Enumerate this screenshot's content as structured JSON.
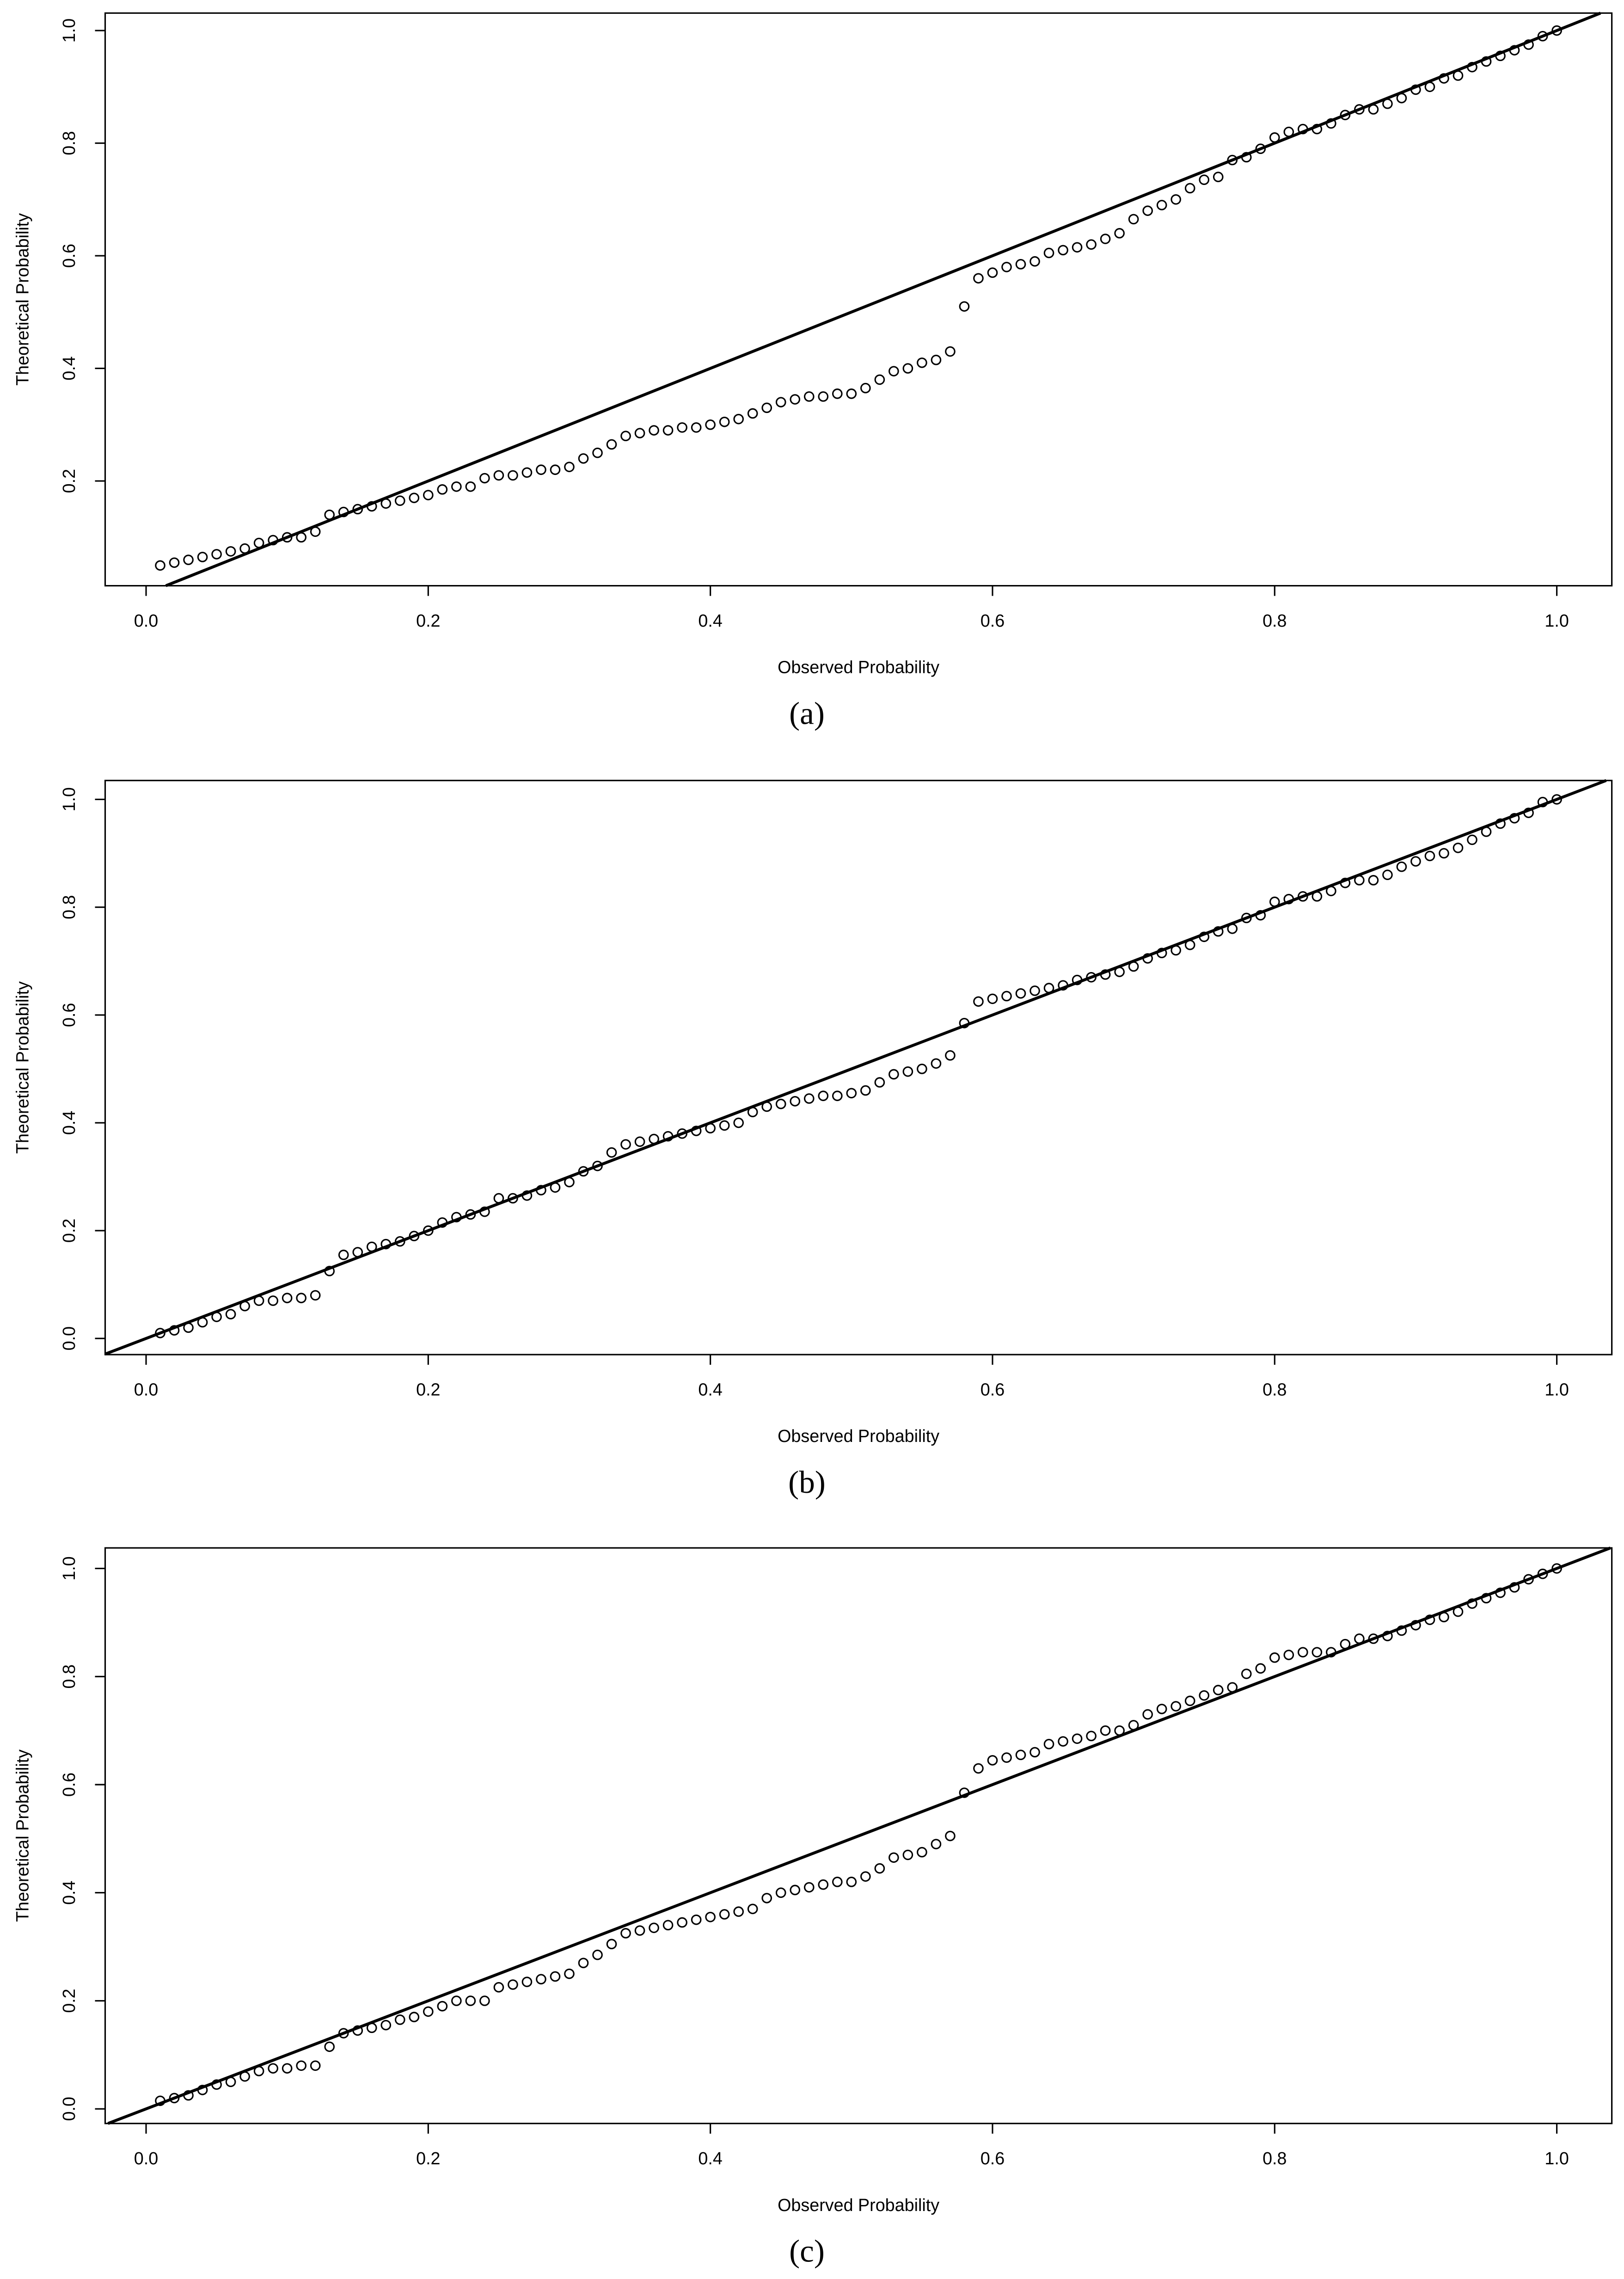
{
  "chart_data": [
    {
      "type": "scatter",
      "caption": "(a)",
      "x_label": "Observed Probability",
      "y_label": "Theoretical Probability",
      "marker": "open-circle",
      "color": "#000000",
      "diagonal_line": true,
      "xlim": [
        -0.029,
        1.039
      ],
      "ylim": [
        0.014,
        1.031
      ],
      "xticks": [
        {
          "value": 0,
          "label": "0.0"
        },
        0.2,
        0.4,
        0.6,
        0.8,
        {
          "value": 1,
          "label": "1.0"
        }
      ],
      "yticks": [
        0.2,
        0.4,
        0.6,
        0.8,
        {
          "value": 1,
          "label": "1.0"
        }
      ],
      "x": [
        0.01,
        0.02,
        0.03,
        0.04,
        0.05,
        0.06,
        0.07,
        0.08,
        0.09,
        0.1,
        0.11,
        0.12,
        0.13,
        0.14,
        0.15,
        0.16,
        0.17,
        0.18,
        0.19,
        0.2,
        0.21,
        0.22,
        0.23,
        0.24,
        0.25,
        0.26,
        0.27,
        0.28,
        0.29,
        0.3,
        0.31,
        0.32,
        0.33,
        0.34,
        0.35,
        0.36,
        0.37,
        0.38,
        0.39,
        0.4,
        0.41,
        0.42,
        0.43,
        0.44,
        0.45,
        0.46,
        0.47,
        0.48,
        0.49,
        0.5,
        0.51,
        0.52,
        0.53,
        0.54,
        0.55,
        0.56,
        0.57,
        0.58,
        0.59,
        0.6,
        0.61,
        0.62,
        0.63,
        0.64,
        0.65,
        0.66,
        0.67,
        0.68,
        0.69,
        0.7,
        0.71,
        0.72,
        0.73,
        0.74,
        0.75,
        0.76,
        0.77,
        0.78,
        0.79,
        0.8,
        0.81,
        0.82,
        0.83,
        0.84,
        0.85,
        0.86,
        0.87,
        0.88,
        0.89,
        0.9,
        0.91,
        0.92,
        0.93,
        0.94,
        0.95,
        0.96,
        0.97,
        0.98,
        0.99,
        1.0
      ],
      "values": [
        0.05,
        0.055,
        0.06,
        0.065,
        0.07,
        0.075,
        0.08,
        0.09,
        0.095,
        0.1,
        0.1,
        0.11,
        0.14,
        0.145,
        0.15,
        0.155,
        0.16,
        0.165,
        0.17,
        0.175,
        0.185,
        0.19,
        0.19,
        0.205,
        0.21,
        0.21,
        0.215,
        0.22,
        0.22,
        0.225,
        0.24,
        0.25,
        0.265,
        0.28,
        0.285,
        0.29,
        0.29,
        0.295,
        0.295,
        0.3,
        0.305,
        0.31,
        0.32,
        0.33,
        0.34,
        0.345,
        0.35,
        0.35,
        0.355,
        0.355,
        0.365,
        0.38,
        0.395,
        0.4,
        0.41,
        0.415,
        0.43,
        0.51,
        0.56,
        0.57,
        0.58,
        0.585,
        0.59,
        0.605,
        0.61,
        0.615,
        0.62,
        0.63,
        0.64,
        0.665,
        0.68,
        0.69,
        0.7,
        0.72,
        0.735,
        0.74,
        0.77,
        0.775,
        0.79,
        0.81,
        0.82,
        0.825,
        0.825,
        0.835,
        0.85,
        0.86,
        0.86,
        0.87,
        0.88,
        0.895,
        0.9,
        0.915,
        0.92,
        0.935,
        0.945,
        0.955,
        0.965,
        0.975,
        0.99,
        1.0
      ]
    },
    {
      "type": "scatter",
      "caption": "(b)",
      "x_label": "Observed Probability",
      "y_label": "Theoretical Probability",
      "marker": "open-circle",
      "color": "#000000",
      "diagonal_line": true,
      "xlim": [
        -0.029,
        1.039
      ],
      "ylim": [
        -0.03,
        1.035
      ],
      "xticks": [
        {
          "value": 0,
          "label": "0.0"
        },
        0.2,
        0.4,
        0.6,
        0.8,
        {
          "value": 1,
          "label": "1.0"
        }
      ],
      "yticks": [
        {
          "value": 0,
          "label": "0.0"
        },
        0.2,
        0.4,
        0.6,
        0.8,
        {
          "value": 1,
          "label": "1.0"
        }
      ],
      "x": [
        0.01,
        0.02,
        0.03,
        0.04,
        0.05,
        0.06,
        0.07,
        0.08,
        0.09,
        0.1,
        0.11,
        0.12,
        0.13,
        0.14,
        0.15,
        0.16,
        0.17,
        0.18,
        0.19,
        0.2,
        0.21,
        0.22,
        0.23,
        0.24,
        0.25,
        0.26,
        0.27,
        0.28,
        0.29,
        0.3,
        0.31,
        0.32,
        0.33,
        0.34,
        0.35,
        0.36,
        0.37,
        0.38,
        0.39,
        0.4,
        0.41,
        0.42,
        0.43,
        0.44,
        0.45,
        0.46,
        0.47,
        0.48,
        0.49,
        0.5,
        0.51,
        0.52,
        0.53,
        0.54,
        0.55,
        0.56,
        0.57,
        0.58,
        0.59,
        0.6,
        0.61,
        0.62,
        0.63,
        0.64,
        0.65,
        0.66,
        0.67,
        0.68,
        0.69,
        0.7,
        0.71,
        0.72,
        0.73,
        0.74,
        0.75,
        0.76,
        0.77,
        0.78,
        0.79,
        0.8,
        0.81,
        0.82,
        0.83,
        0.84,
        0.85,
        0.86,
        0.87,
        0.88,
        0.89,
        0.9,
        0.91,
        0.92,
        0.93,
        0.94,
        0.95,
        0.96,
        0.97,
        0.98,
        0.99,
        1.0
      ],
      "values": [
        0.01,
        0.015,
        0.02,
        0.03,
        0.04,
        0.045,
        0.06,
        0.07,
        0.07,
        0.075,
        0.075,
        0.08,
        0.125,
        0.155,
        0.16,
        0.17,
        0.175,
        0.18,
        0.19,
        0.2,
        0.215,
        0.225,
        0.23,
        0.235,
        0.26,
        0.26,
        0.265,
        0.275,
        0.28,
        0.29,
        0.31,
        0.32,
        0.345,
        0.36,
        0.365,
        0.37,
        0.375,
        0.38,
        0.385,
        0.39,
        0.395,
        0.4,
        0.42,
        0.43,
        0.435,
        0.44,
        0.445,
        0.45,
        0.45,
        0.455,
        0.46,
        0.475,
        0.49,
        0.495,
        0.5,
        0.51,
        0.525,
        0.585,
        0.625,
        0.63,
        0.635,
        0.64,
        0.645,
        0.65,
        0.655,
        0.665,
        0.67,
        0.675,
        0.68,
        0.69,
        0.705,
        0.715,
        0.72,
        0.73,
        0.745,
        0.755,
        0.76,
        0.78,
        0.785,
        0.81,
        0.815,
        0.82,
        0.82,
        0.83,
        0.845,
        0.85,
        0.85,
        0.86,
        0.875,
        0.885,
        0.895,
        0.9,
        0.91,
        0.925,
        0.94,
        0.955,
        0.965,
        0.975,
        0.995,
        1.0
      ]
    },
    {
      "type": "scatter",
      "caption": "(c)",
      "x_label": "Observed Probability",
      "y_label": "Theoretical Probability",
      "marker": "open-circle",
      "color": "#000000",
      "diagonal_line": true,
      "xlim": [
        -0.029,
        1.039
      ],
      "ylim": [
        -0.027,
        1.038
      ],
      "xticks": [
        {
          "value": 0,
          "label": "0.0"
        },
        0.2,
        0.4,
        0.6,
        0.8,
        {
          "value": 1,
          "label": "1.0"
        }
      ],
      "yticks": [
        {
          "value": 0,
          "label": "0.0"
        },
        0.2,
        0.4,
        0.6,
        0.8,
        {
          "value": 1,
          "label": "1.0"
        }
      ],
      "x": [
        0.01,
        0.02,
        0.03,
        0.04,
        0.05,
        0.06,
        0.07,
        0.08,
        0.09,
        0.1,
        0.11,
        0.12,
        0.13,
        0.14,
        0.15,
        0.16,
        0.17,
        0.18,
        0.19,
        0.2,
        0.21,
        0.22,
        0.23,
        0.24,
        0.25,
        0.26,
        0.27,
        0.28,
        0.29,
        0.3,
        0.31,
        0.32,
        0.33,
        0.34,
        0.35,
        0.36,
        0.37,
        0.38,
        0.39,
        0.4,
        0.41,
        0.42,
        0.43,
        0.44,
        0.45,
        0.46,
        0.47,
        0.48,
        0.49,
        0.5,
        0.51,
        0.52,
        0.53,
        0.54,
        0.55,
        0.56,
        0.57,
        0.58,
        0.59,
        0.6,
        0.61,
        0.62,
        0.63,
        0.64,
        0.65,
        0.66,
        0.67,
        0.68,
        0.69,
        0.7,
        0.71,
        0.72,
        0.73,
        0.74,
        0.75,
        0.76,
        0.77,
        0.78,
        0.79,
        0.8,
        0.81,
        0.82,
        0.83,
        0.84,
        0.85,
        0.86,
        0.87,
        0.88,
        0.89,
        0.9,
        0.91,
        0.92,
        0.93,
        0.94,
        0.95,
        0.96,
        0.97,
        0.98,
        0.99,
        1.0
      ],
      "values": [
        0.015,
        0.02,
        0.025,
        0.035,
        0.045,
        0.05,
        0.06,
        0.07,
        0.075,
        0.075,
        0.08,
        0.08,
        0.115,
        0.14,
        0.145,
        0.15,
        0.155,
        0.165,
        0.17,
        0.18,
        0.19,
        0.2,
        0.2,
        0.2,
        0.225,
        0.23,
        0.235,
        0.24,
        0.245,
        0.25,
        0.27,
        0.285,
        0.305,
        0.325,
        0.33,
        0.335,
        0.34,
        0.345,
        0.35,
        0.355,
        0.36,
        0.365,
        0.37,
        0.39,
        0.4,
        0.405,
        0.41,
        0.415,
        0.42,
        0.42,
        0.43,
        0.445,
        0.465,
        0.47,
        0.475,
        0.49,
        0.505,
        0.585,
        0.63,
        0.645,
        0.65,
        0.655,
        0.66,
        0.675,
        0.68,
        0.685,
        0.69,
        0.7,
        0.7,
        0.71,
        0.73,
        0.74,
        0.745,
        0.755,
        0.765,
        0.775,
        0.78,
        0.805,
        0.815,
        0.835,
        0.84,
        0.845,
        0.845,
        0.845,
        0.86,
        0.87,
        0.87,
        0.875,
        0.885,
        0.895,
        0.905,
        0.91,
        0.92,
        0.935,
        0.945,
        0.955,
        0.965,
        0.98,
        0.99,
        1.0
      ]
    }
  ]
}
